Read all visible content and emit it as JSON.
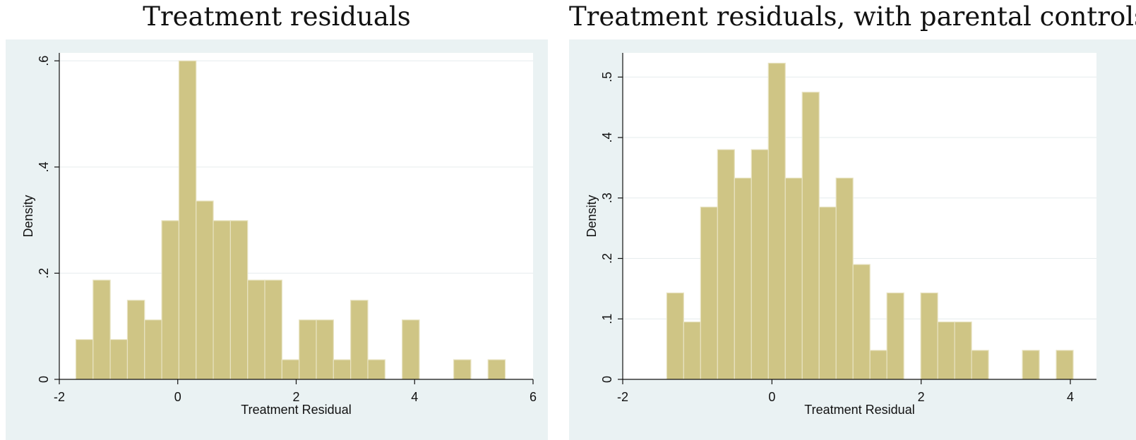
{
  "charts": {
    "left": {
      "title": "Treatment residuals",
      "chart_data": {
        "type": "bar",
        "xlabel": "Treatment Residual",
        "ylabel": "Density",
        "xlim": [
          -2,
          6
        ],
        "ylim": [
          0,
          0.615
        ],
        "xticks": [
          "-2",
          "0",
          "2",
          "4",
          "6"
        ],
        "yticks": [
          "0",
          ".2",
          ".4",
          ".6"
        ],
        "bin_width": 0.29,
        "bin_start": -1.72,
        "values": [
          0.075,
          0.187,
          0.075,
          0.149,
          0.112,
          0.299,
          0.6,
          0.336,
          0.299,
          0.299,
          0.187,
          0.187,
          0.037,
          0.112,
          0.112,
          0.037,
          0.149,
          0.037,
          0,
          0.112,
          0,
          0,
          0.037,
          0,
          0.037
        ],
        "bar_color": "#cfc585",
        "grid": true
      }
    },
    "right": {
      "title": "Treatment residuals, with parental controls",
      "chart_data": {
        "type": "bar",
        "xlabel": "Treatment Residual",
        "ylabel": "Density",
        "xlim": [
          -2,
          4.35
        ],
        "ylim": [
          0,
          0.54
        ],
        "xticks": [
          "-2",
          "0",
          "2",
          "4"
        ],
        "yticks": [
          "0",
          ".1",
          ".2",
          ".3",
          ".4",
          ".5"
        ],
        "bin_width": 0.227,
        "bin_start": -1.41,
        "values": [
          0.143,
          0.095,
          0.285,
          0.38,
          0.333,
          0.38,
          0.523,
          0.333,
          0.475,
          0.285,
          0.333,
          0.19,
          0.048,
          0.143,
          0,
          0.143,
          0.095,
          0.095,
          0.048,
          0,
          0,
          0.048,
          0,
          0.048
        ],
        "bar_color": "#cfc585",
        "grid": true
      }
    }
  }
}
